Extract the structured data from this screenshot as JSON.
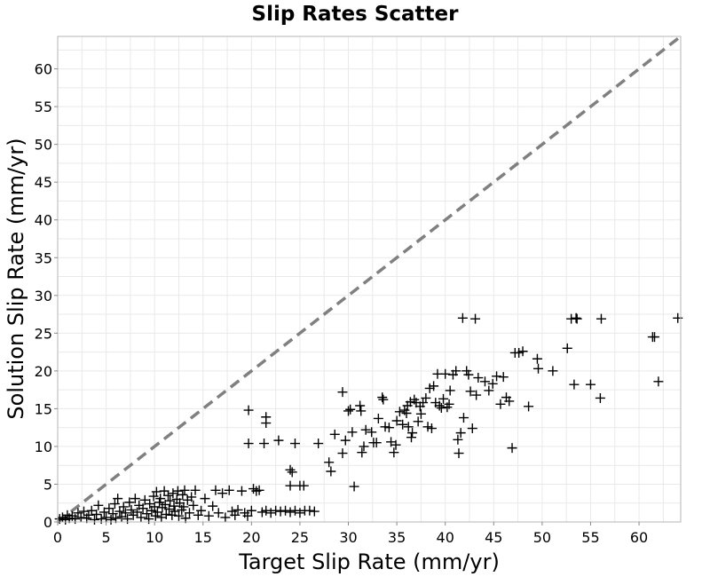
{
  "chart_data": {
    "type": "scatter",
    "title": "Slip Rates Scatter",
    "xlabel": "Target Slip Rate (mm/yr)",
    "ylabel": "Solution Slip Rate (mm/yr)",
    "xlim": [
      0,
      64.3
    ],
    "ylim": [
      0,
      64.3
    ],
    "xticks": [
      0,
      5,
      10,
      15,
      20,
      25,
      30,
      35,
      40,
      45,
      50,
      55,
      60
    ],
    "yticks": [
      0,
      5,
      10,
      15,
      20,
      25,
      30,
      35,
      40,
      45,
      50,
      55,
      60
    ],
    "grid": true,
    "marker": "plus",
    "marker_color": "#000000",
    "reference_line": {
      "style": "dashed",
      "color": "#808080",
      "x": [
        0,
        64.3
      ],
      "y": [
        0,
        64.3
      ]
    },
    "series": [
      {
        "points": [
          [
            0.2,
            0.4
          ],
          [
            0.5,
            0.6
          ],
          [
            0.8,
            0.3
          ],
          [
            1.0,
            0.9
          ],
          [
            1.2,
            0.5
          ],
          [
            1.5,
            0.8
          ],
          [
            1.8,
            0.4
          ],
          [
            2.1,
            1.2
          ],
          [
            2.4,
            0.6
          ],
          [
            2.7,
            1.4
          ],
          [
            3.0,
            0.5
          ],
          [
            3.2,
            0.9
          ],
          [
            3.5,
            1.5
          ],
          [
            3.8,
            0.3
          ],
          [
            4.0,
            1.0
          ],
          [
            4.2,
            2.2
          ],
          [
            4.5,
            0.4
          ],
          [
            4.8,
            1.3
          ],
          [
            5.0,
            0.6
          ],
          [
            5.3,
            1.8
          ],
          [
            5.5,
            0.3
          ],
          [
            5.7,
            1.1
          ],
          [
            5.9,
            2.4
          ],
          [
            6.0,
            0.5
          ],
          [
            6.2,
            3.1
          ],
          [
            6.4,
            1.4
          ],
          [
            6.6,
            0.7
          ],
          [
            6.8,
            2.0
          ],
          [
            7.0,
            1.2
          ],
          [
            7.2,
            0.4
          ],
          [
            7.4,
            2.6
          ],
          [
            7.6,
            1.6
          ],
          [
            7.8,
            0.9
          ],
          [
            8.0,
            3.1
          ],
          [
            8.2,
            1.3
          ],
          [
            8.4,
            2.2
          ],
          [
            8.6,
            0.6
          ],
          [
            8.8,
            1.8
          ],
          [
            9.0,
            2.9
          ],
          [
            9.2,
            1.1
          ],
          [
            9.4,
            0.4
          ],
          [
            9.5,
            2.4
          ],
          [
            9.7,
            1.5
          ],
          [
            9.9,
            3.4
          ],
          [
            10.0,
            2.0
          ],
          [
            10.1,
            0.8
          ],
          [
            10.2,
            4.0
          ],
          [
            10.3,
            1.3
          ],
          [
            10.5,
            2.6
          ],
          [
            10.6,
            3.1
          ],
          [
            10.7,
            0.6
          ],
          [
            10.8,
            1.9
          ],
          [
            11.0,
            4.1
          ],
          [
            11.1,
            2.3
          ],
          [
            11.2,
            1.0
          ],
          [
            11.4,
            3.5
          ],
          [
            11.5,
            1.7
          ],
          [
            11.6,
            2.8
          ],
          [
            11.8,
            0.9
          ],
          [
            11.9,
            3.8
          ],
          [
            12.0,
            2.1
          ],
          [
            12.1,
            1.4
          ],
          [
            12.3,
            3.0
          ],
          [
            12.4,
            4.1
          ],
          [
            12.5,
            0.8
          ],
          [
            12.6,
            2.5
          ],
          [
            12.8,
            1.6
          ],
          [
            12.9,
            3.6
          ],
          [
            13.0,
            2.0
          ],
          [
            13.1,
            4.2
          ],
          [
            13.2,
            0.5
          ],
          [
            13.4,
            2.9
          ],
          [
            13.6,
            1.2
          ],
          [
            13.8,
            3.3
          ],
          [
            14.0,
            2.2
          ],
          [
            14.2,
            4.2
          ],
          [
            14.5,
            0.9
          ],
          [
            14.8,
            1.5
          ],
          [
            15.2,
            3.1
          ],
          [
            15.6,
            0.8
          ],
          [
            16.0,
            2.1
          ],
          [
            16.3,
            4.2
          ],
          [
            16.6,
            1.2
          ],
          [
            17.0,
            3.8
          ],
          [
            17.3,
            0.6
          ],
          [
            17.7,
            4.2
          ],
          [
            18.0,
            1.4
          ],
          [
            18.3,
            0.9
          ],
          [
            18.6,
            1.6
          ],
          [
            19.0,
            4.1
          ],
          [
            19.3,
            1.2
          ],
          [
            19.6,
            0.8
          ],
          [
            20.0,
            1.5
          ],
          [
            20.2,
            4.4
          ],
          [
            20.5,
            4.1
          ],
          [
            20.8,
            4.2
          ],
          [
            21.1,
            1.3
          ],
          [
            21.5,
            1.5
          ],
          [
            22.0,
            1.2
          ],
          [
            22.5,
            1.5
          ],
          [
            23.0,
            1.4
          ],
          [
            23.5,
            1.5
          ],
          [
            24.0,
            1.3
          ],
          [
            24.5,
            1.5
          ],
          [
            25.0,
            1.2
          ],
          [
            25.5,
            1.5
          ],
          [
            26.0,
            1.5
          ],
          [
            26.5,
            1.4
          ],
          [
            19.7,
            14.8
          ],
          [
            19.7,
            10.4
          ],
          [
            21.3,
            10.4
          ],
          [
            21.5,
            13.9
          ],
          [
            21.5,
            13.1
          ],
          [
            22.8,
            10.8
          ],
          [
            24.0,
            4.8
          ],
          [
            24.0,
            6.9
          ],
          [
            24.2,
            6.6
          ],
          [
            24.5,
            10.4
          ],
          [
            25.0,
            4.8
          ],
          [
            25.4,
            4.8
          ],
          [
            26.9,
            10.4
          ],
          [
            28.0,
            7.9
          ],
          [
            28.2,
            6.7
          ],
          [
            28.6,
            11.6
          ],
          [
            29.4,
            9.1
          ],
          [
            29.4,
            17.2
          ],
          [
            29.7,
            10.8
          ],
          [
            30.0,
            14.7
          ],
          [
            30.2,
            14.9
          ],
          [
            30.4,
            11.9
          ],
          [
            30.6,
            4.7
          ],
          [
            31.2,
            15.4
          ],
          [
            31.3,
            14.7
          ],
          [
            31.4,
            9.2
          ],
          [
            31.6,
            10.0
          ],
          [
            31.8,
            12.2
          ],
          [
            32.4,
            11.9
          ],
          [
            32.6,
            10.5
          ],
          [
            32.9,
            10.5
          ],
          [
            33.1,
            13.7
          ],
          [
            33.5,
            16.5
          ],
          [
            33.6,
            16.2
          ],
          [
            33.8,
            12.6
          ],
          [
            34.2,
            12.5
          ],
          [
            34.4,
            10.6
          ],
          [
            34.7,
            9.2
          ],
          [
            34.9,
            10.2
          ],
          [
            35.0,
            13.4
          ],
          [
            35.3,
            14.6
          ],
          [
            35.6,
            12.9
          ],
          [
            35.8,
            14.8
          ],
          [
            36.0,
            14.4
          ],
          [
            36.1,
            15.4
          ],
          [
            36.2,
            12.6
          ],
          [
            36.4,
            15.9
          ],
          [
            36.5,
            11.2
          ],
          [
            36.6,
            11.8
          ],
          [
            36.8,
            16.2
          ],
          [
            37.0,
            15.8
          ],
          [
            37.2,
            13.3
          ],
          [
            37.4,
            15.3
          ],
          [
            37.5,
            14.3
          ],
          [
            37.7,
            15.8
          ],
          [
            38.0,
            16.4
          ],
          [
            38.2,
            12.6
          ],
          [
            38.4,
            17.7
          ],
          [
            38.6,
            12.4
          ],
          [
            38.8,
            18.0
          ],
          [
            39.0,
            15.8
          ],
          [
            39.2,
            19.6
          ],
          [
            39.4,
            15.4
          ],
          [
            39.6,
            15.1
          ],
          [
            39.8,
            16.3
          ],
          [
            40.0,
            19.6
          ],
          [
            40.2,
            15.2
          ],
          [
            40.4,
            15.6
          ],
          [
            40.5,
            17.4
          ],
          [
            40.8,
            19.5
          ],
          [
            41.1,
            20.0
          ],
          [
            41.3,
            10.9
          ],
          [
            41.4,
            9.1
          ],
          [
            41.6,
            11.8
          ],
          [
            41.8,
            27.0
          ],
          [
            41.9,
            13.8
          ],
          [
            42.2,
            20.0
          ],
          [
            42.4,
            19.5
          ],
          [
            42.6,
            17.3
          ],
          [
            42.8,
            12.4
          ],
          [
            43.1,
            26.9
          ],
          [
            43.2,
            16.8
          ],
          [
            43.4,
            19.1
          ],
          [
            44.1,
            18.6
          ],
          [
            44.5,
            17.4
          ],
          [
            44.9,
            18.3
          ],
          [
            45.3,
            19.3
          ],
          [
            45.7,
            15.6
          ],
          [
            46.0,
            19.2
          ],
          [
            46.3,
            16.5
          ],
          [
            46.6,
            16.0
          ],
          [
            46.9,
            9.8
          ],
          [
            47.2,
            22.4
          ],
          [
            47.6,
            22.4
          ],
          [
            48.0,
            22.6
          ],
          [
            48.6,
            15.3
          ],
          [
            49.5,
            21.6
          ],
          [
            49.6,
            20.3
          ],
          [
            51.1,
            20.0
          ],
          [
            52.6,
            23.0
          ],
          [
            53.0,
            26.9
          ],
          [
            53.3,
            18.2
          ],
          [
            53.5,
            27.0
          ],
          [
            53.6,
            26.9
          ],
          [
            55.0,
            18.2
          ],
          [
            56.0,
            16.4
          ],
          [
            56.1,
            26.9
          ],
          [
            61.4,
            24.5
          ],
          [
            61.6,
            24.5
          ],
          [
            62.0,
            18.6
          ],
          [
            64.0,
            27.0
          ]
        ]
      }
    ]
  }
}
